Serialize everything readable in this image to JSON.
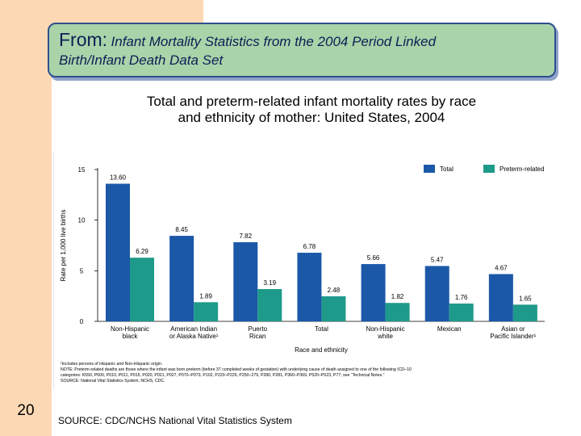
{
  "slide": {
    "banner_from": "From:",
    "banner_title_line1": "Infant Mortality Statistics from the 2004 Period Linked",
    "banner_title_line2": "Birth/Infant Death Data Set",
    "chart_title_line1": "Total and preterm-related infant mortality rates by race",
    "chart_title_line2": "and ethnicity of mother: United States, 2004",
    "slide_number": "20",
    "source": "SOURCE: CDC/NCHS National Vital Statistics System",
    "colors": {
      "left_band": "#fcd9b4",
      "banner_fill": "#a9d3a9",
      "banner_border": "#2f4f8f",
      "banner_text": "#0a1f55"
    }
  },
  "chart_data": {
    "type": "bar",
    "title": "",
    "xlabel": "Race and ethnicity",
    "ylabel": "Rate per 1,000 live births",
    "ylim": [
      0,
      15
    ],
    "yticks": [
      0,
      5,
      10,
      15
    ],
    "grid": false,
    "legend_position": "top-right",
    "categories": [
      [
        "Non-Hispanic",
        "black"
      ],
      [
        "American Indian",
        "or Alaska Native¹"
      ],
      [
        "Puerto",
        "Rican"
      ],
      [
        "Total"
      ],
      [
        "Non-Hispanic",
        "white"
      ],
      [
        "Mexican"
      ],
      [
        "Asian or",
        "Pacific Islander¹"
      ]
    ],
    "series": [
      {
        "name": "Total",
        "color": "#1b58a8",
        "values": [
          13.6,
          8.45,
          7.82,
          6.78,
          5.66,
          5.47,
          4.67
        ],
        "labels": [
          "13.60",
          "8.45",
          "7.82",
          "6.78",
          "5.66",
          "5.47",
          "4.67"
        ]
      },
      {
        "name": "Preterm-related",
        "color": "#1e9a8a",
        "values": [
          6.29,
          1.89,
          3.19,
          2.48,
          1.82,
          1.76,
          1.65
        ],
        "labels": [
          "6.29",
          "1.89",
          "3.19",
          "2.48",
          "1.82",
          "1.76",
          "1.65"
        ]
      }
    ],
    "footnotes": [
      "¹Includes persons of Hispanic and Non-Hispanic origin.",
      "NOTE: Preterm-related deaths are those where the infant was born preterm (before 37 completed weeks of gestation) with underlying cause of death assigned to one of the following ICD–10",
      "categories: K550, P000, P010, P011, P015, P020, P021, P027, P070–P073, P102, P220–P229, P250–279, P280, P281, P360–P369, P520–P523, P77; see “Technical Notes.”",
      "SOURCE: National Vital Statistics System, NCHS, CDC."
    ]
  }
}
